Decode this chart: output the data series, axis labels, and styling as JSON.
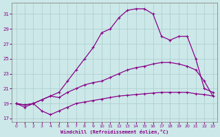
{
  "xlabel": "Windchill (Refroidissement éolien,°C)",
  "background_color": "#cce8e8",
  "grid_color": "#aacccc",
  "line_color": "#880088",
  "xlim": [
    -0.5,
    23.5
  ],
  "ylim": [
    16.5,
    32.5
  ],
  "xticks": [
    0,
    1,
    2,
    3,
    4,
    5,
    6,
    7,
    8,
    9,
    10,
    11,
    12,
    13,
    14,
    15,
    16,
    17,
    18,
    19,
    20,
    21,
    22,
    23
  ],
  "yticks": [
    17,
    19,
    21,
    23,
    25,
    27,
    29,
    31
  ],
  "line1_x": [
    0,
    1,
    2,
    3,
    4,
    5,
    6,
    7,
    8,
    9,
    10,
    11,
    12,
    13,
    14,
    15,
    16,
    17,
    18,
    19,
    20,
    21,
    22,
    23
  ],
  "line1_y": [
    19,
    18.5,
    19,
    18.0,
    17.5,
    18.0,
    18.5,
    19.0,
    19.2,
    19.4,
    19.6,
    19.8,
    20.0,
    20.1,
    20.2,
    20.3,
    20.4,
    20.5,
    20.5,
    20.5,
    20.5,
    20.3,
    20.2,
    20.0
  ],
  "line2_x": [
    0,
    1,
    2,
    3,
    4,
    5,
    6,
    7,
    8,
    9,
    10,
    11,
    12,
    13,
    14,
    15,
    16,
    17,
    18,
    19,
    20,
    21,
    22,
    23
  ],
  "line2_y": [
    19,
    18.8,
    19.0,
    19.5,
    20.0,
    20.5,
    22.0,
    23.5,
    25.0,
    26.5,
    28.5,
    29.0,
    30.5,
    31.5,
    31.7,
    31.7,
    31.0,
    28.0,
    27.5,
    28.0,
    28.0,
    25.0,
    21.0,
    20.5
  ],
  "line3_x": [
    0,
    1,
    2,
    3,
    4,
    5,
    6,
    7,
    8,
    9,
    10,
    11,
    12,
    13,
    14,
    15,
    16,
    17,
    18,
    19,
    20,
    21,
    22,
    23
  ],
  "line3_y": [
    19,
    18.8,
    19.0,
    19.5,
    20.0,
    19.8,
    20.5,
    21.0,
    21.5,
    21.8,
    22.0,
    22.5,
    23.0,
    23.5,
    23.8,
    24.0,
    24.3,
    24.5,
    24.5,
    24.3,
    24.0,
    23.5,
    22.0,
    20.0
  ]
}
